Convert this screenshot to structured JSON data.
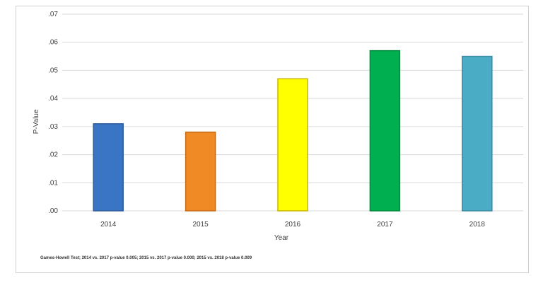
{
  "chart_data": {
    "type": "bar",
    "categories": [
      "2014",
      "2015",
      "2016",
      "2017",
      "2018"
    ],
    "values": [
      0.031,
      0.028,
      0.047,
      0.057,
      0.055
    ],
    "colors": [
      "#3a74c4",
      "#f08a24",
      "#ffff00",
      "#00b050",
      "#4bacc6"
    ],
    "bar_border_colors": [
      "#2e5c9a",
      "#c76a16",
      "#c9b400",
      "#008a3c",
      "#3a8aa0"
    ],
    "title": "",
    "xlabel": "Year",
    "ylabel": "P-Value",
    "ylim": [
      0,
      0.07
    ],
    "yticks": [
      ".00",
      ".01",
      ".02",
      ".03",
      ".04",
      ".05",
      ".06",
      ".07"
    ],
    "grid": true,
    "legend": "none"
  },
  "footnote": "Games-Howell Test; 2014 vs. 2017 p-value 0.005; 2015 vs. 2017 p-value 0.000; 2015 vs. 2018 p-value 0.009"
}
